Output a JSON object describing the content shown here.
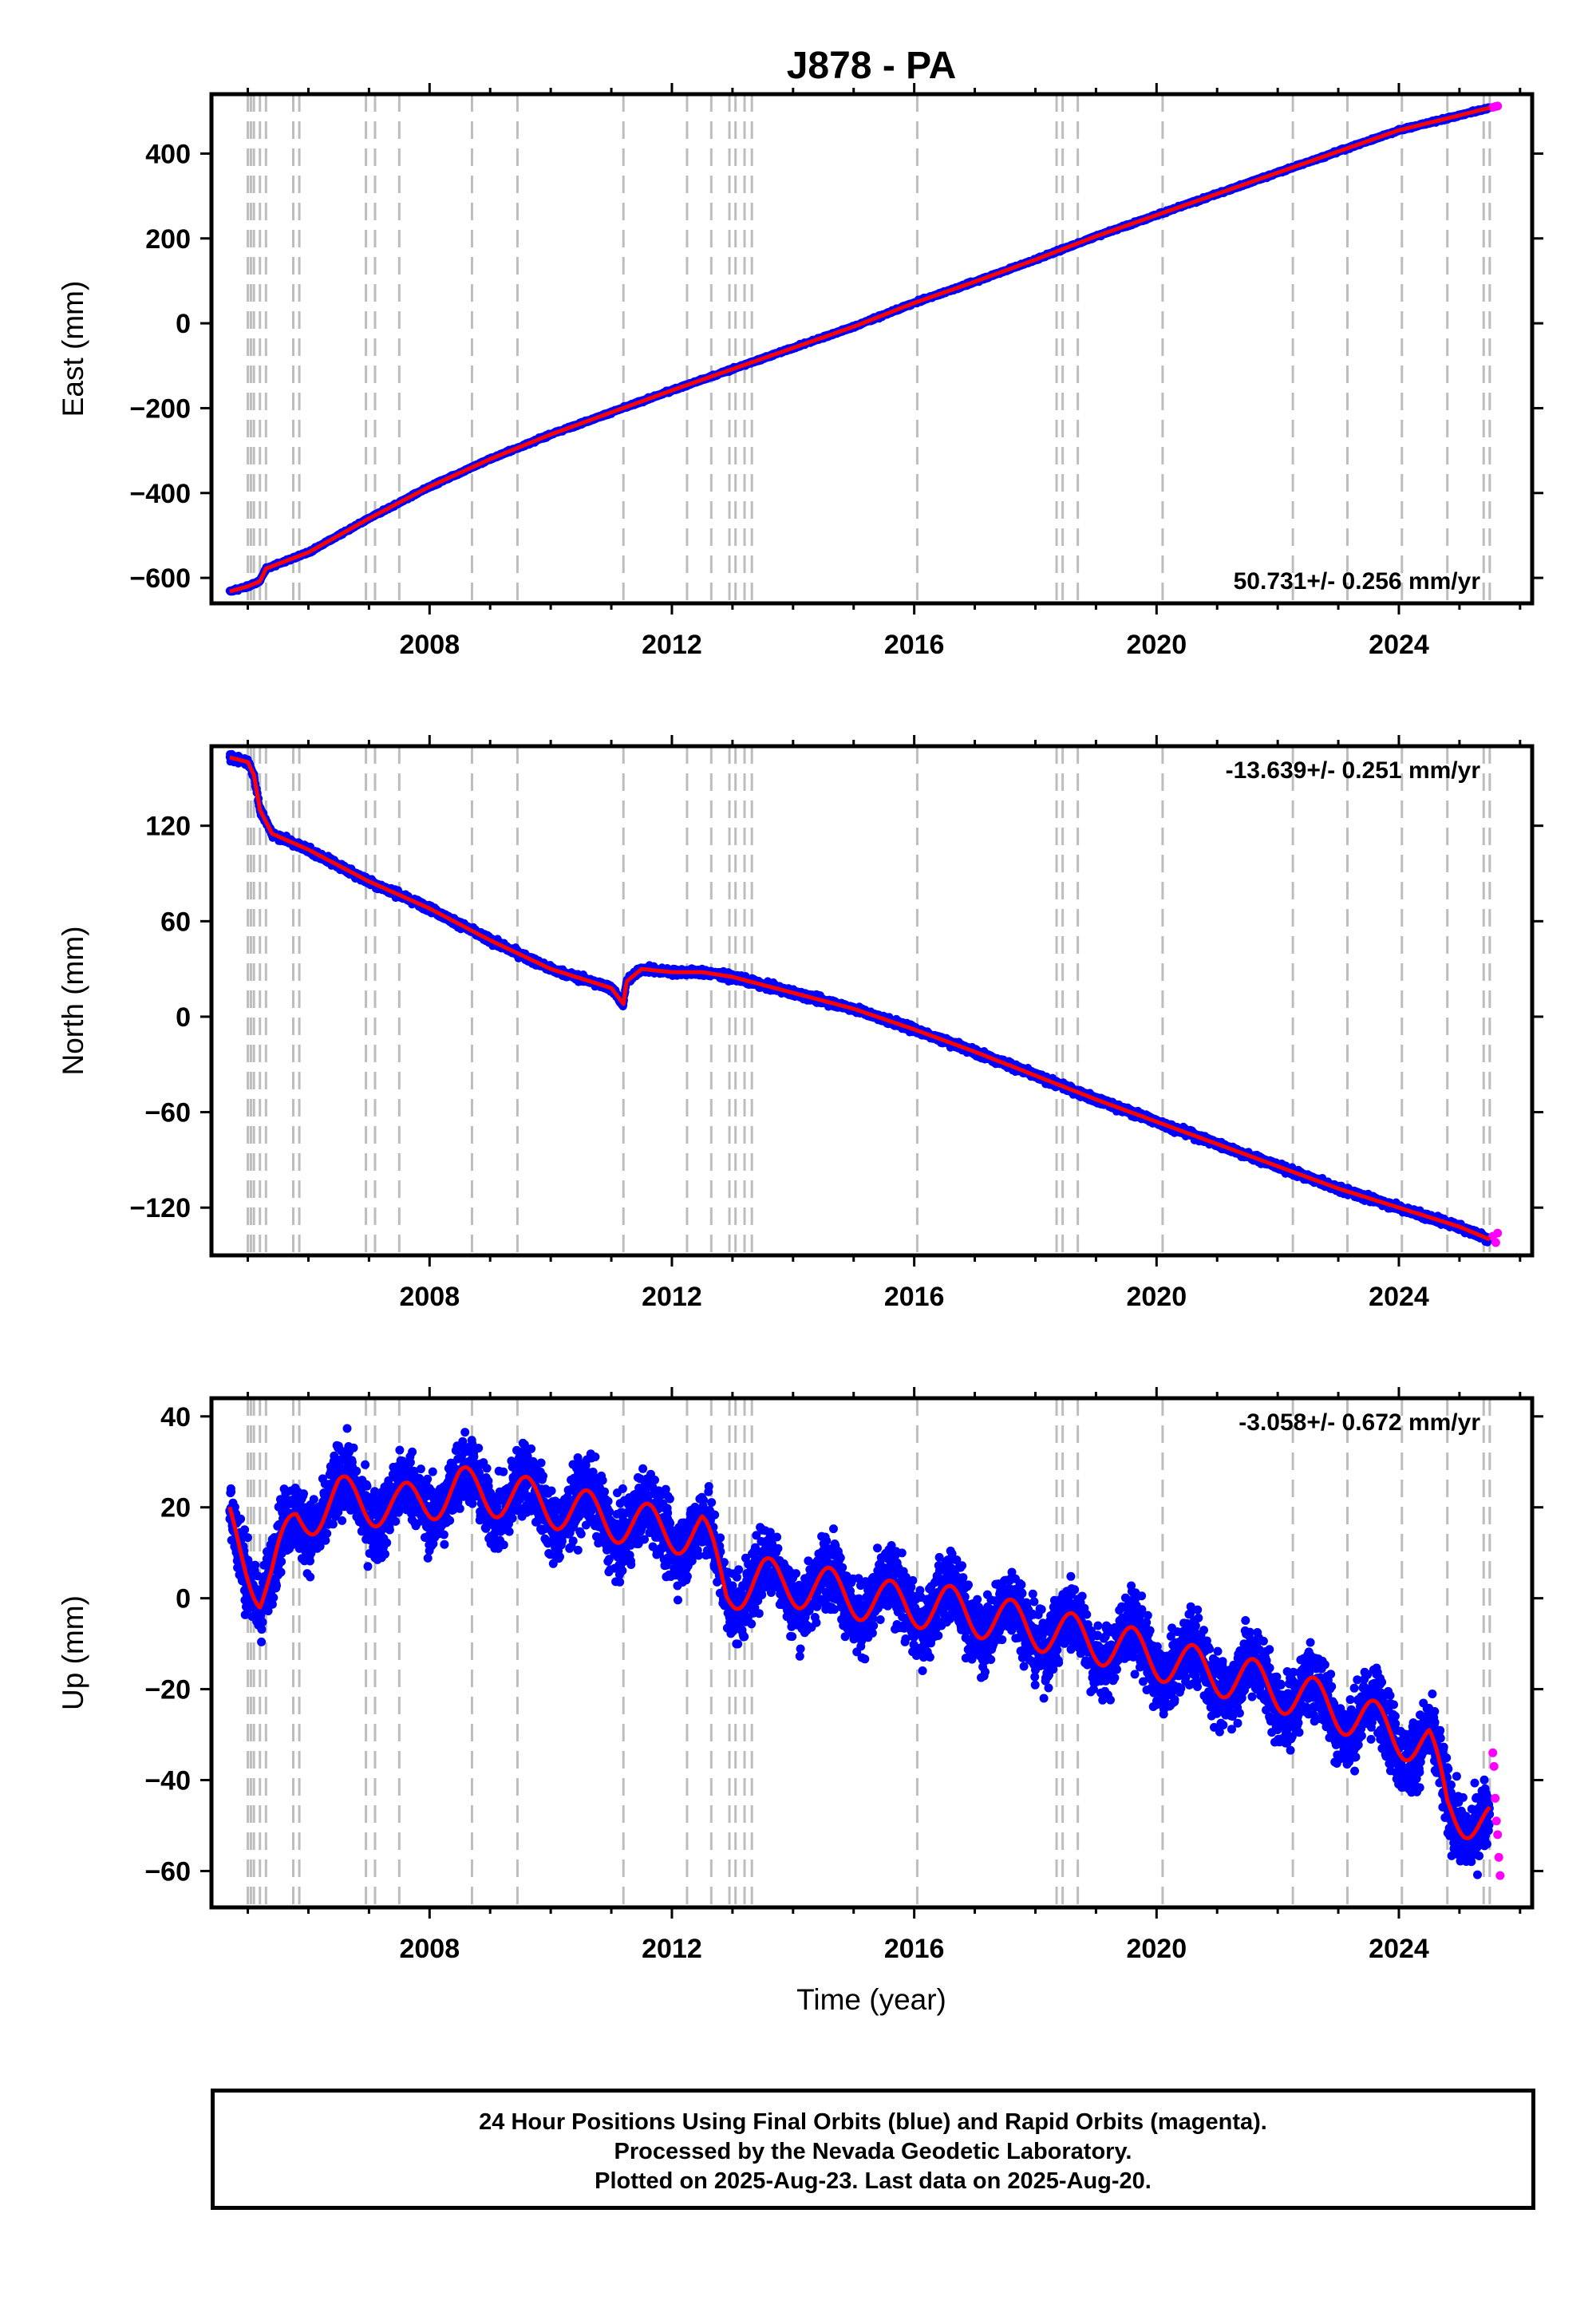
{
  "title": "J878 - PA",
  "colors": {
    "final_orbits": "#0000ff",
    "rapid_orbits": "#ff00ff",
    "model": "#ff0000",
    "offset_lines": "#bdbdbd"
  },
  "x_axis": {
    "label": "Time (year)",
    "range": [
      2004.4,
      2026.2
    ],
    "ticks": [
      2008,
      2012,
      2016,
      2020,
      2024
    ]
  },
  "offset_lines": [
    2005.0,
    2005.05,
    2005.1,
    2005.2,
    2005.3,
    2005.75,
    2005.85,
    2006.95,
    2007.1,
    2007.5,
    2008.7,
    2009.45,
    2011.2,
    2012.25,
    2012.65,
    2012.95,
    2013.05,
    2013.2,
    2013.32,
    2016.05,
    2018.35,
    2018.45,
    2018.7,
    2020.1,
    2022.25,
    2023.15,
    2024.05,
    2024.8,
    2025.4,
    2025.5
  ],
  "chart_data": [
    {
      "type": "scatter",
      "ylabel": "East (mm)",
      "ylim": [
        -660,
        540
      ],
      "yticks": [
        -600,
        -400,
        -200,
        0,
        200,
        400
      ],
      "rate": "50.731+/- 0.256 mm/yr",
      "rate_position": "bottom-right",
      "series": [
        {
          "name": "Final Orbits",
          "x": [
            2004.7,
            2005.0,
            2005.2,
            2005.3,
            2006.0,
            2007.0,
            2008.0,
            2009.0,
            2010.0,
            2011.0,
            2012.0,
            2013.0,
            2014.0,
            2015.0,
            2016.0,
            2017.0,
            2018.0,
            2019.0,
            2020.0,
            2021.0,
            2022.0,
            2023.0,
            2024.0,
            2025.0,
            2025.5
          ],
          "y": [
            -632,
            -620,
            -608,
            -578,
            -540,
            -460,
            -385,
            -320,
            -262,
            -210,
            -158,
            -108,
            -58,
            -8,
            48,
            98,
            150,
            205,
            255,
            305,
            355,
            405,
            455,
            490,
            508
          ]
        },
        {
          "name": "Rapid Orbits",
          "x": [
            2025.55,
            2025.6,
            2025.63
          ],
          "y": [
            509,
            511,
            512
          ]
        }
      ]
    },
    {
      "type": "scatter",
      "ylabel": "North (mm)",
      "ylim": [
        -150,
        170
      ],
      "yticks": [
        -120,
        -60,
        0,
        60,
        120
      ],
      "rate": "-13.639+/- 0.251 mm/yr",
      "rate_position": "top-right",
      "series": [
        {
          "name": "Final Orbits",
          "x": [
            2004.7,
            2005.0,
            2005.1,
            2005.2,
            2005.4,
            2006.0,
            2007.0,
            2008.0,
            2009.0,
            2010.0,
            2011.0,
            2011.2,
            2011.25,
            2011.5,
            2012.0,
            2012.5,
            2013.0,
            2014.0,
            2015.0,
            2016.0,
            2017.0,
            2018.0,
            2019.0,
            2020.0,
            2021.0,
            2022.0,
            2023.0,
            2024.0,
            2025.0,
            2025.5
          ],
          "y": [
            163,
            160,
            152,
            130,
            115,
            105,
            85,
            68,
            48,
            30,
            18,
            8,
            22,
            30,
            28,
            28,
            25,
            15,
            5,
            -8,
            -22,
            -37,
            -52,
            -66,
            -80,
            -94,
            -108,
            -120,
            -132,
            -140
          ]
        },
        {
          "name": "Rapid Orbits",
          "x": [
            2025.55,
            2025.6,
            2025.63
          ],
          "y": [
            -138,
            -142,
            -136
          ]
        }
      ]
    },
    {
      "type": "scatter",
      "ylabel": "Up (mm)",
      "xlabel": "Time (year)",
      "ylim": [
        -68,
        44
      ],
      "yticks": [
        -60,
        -40,
        -20,
        0,
        20,
        40
      ],
      "rate": "-3.058+/- 0.672 mm/yr",
      "rate_position": "top-right",
      "series": [
        {
          "name": "Final Orbits",
          "x": [
            2004.7,
            2005.0,
            2005.2,
            2005.4,
            2005.8,
            2006.5,
            2007.5,
            2008.5,
            2009.5,
            2010.5,
            2011.5,
            2012.5,
            2012.9,
            2013.5,
            2014.5,
            2015.5,
            2016.5,
            2017.5,
            2018.5,
            2019.5,
            2020.5,
            2021.5,
            2022.5,
            2023.5,
            2024.5,
            2024.8,
            2025.5
          ],
          "y": [
            16,
            8,
            2,
            5,
            17,
            22,
            20,
            24,
            22,
            19,
            16,
            14,
            2,
            4,
            2,
            -1,
            -2,
            -5,
            -8,
            -11,
            -15,
            -18,
            -22,
            -27,
            -33,
            -46,
            -50
          ],
          "annual_amplitude_mm": 5
        },
        {
          "name": "Rapid Orbits",
          "x": [
            2025.55,
            2025.57,
            2025.59,
            2025.61,
            2025.63,
            2025.65,
            2025.67
          ],
          "y": [
            -34,
            -37,
            -44,
            -49,
            -52,
            -57,
            -61
          ]
        }
      ]
    }
  ],
  "footer": {
    "line1": "24 Hour Positions Using Final Orbits (blue) and Rapid Orbits (magenta).",
    "line2": "Processed by the Nevada Geodetic Laboratory.",
    "line3": "Plotted on 2025-Aug-23. Last data on 2025-Aug-20."
  }
}
